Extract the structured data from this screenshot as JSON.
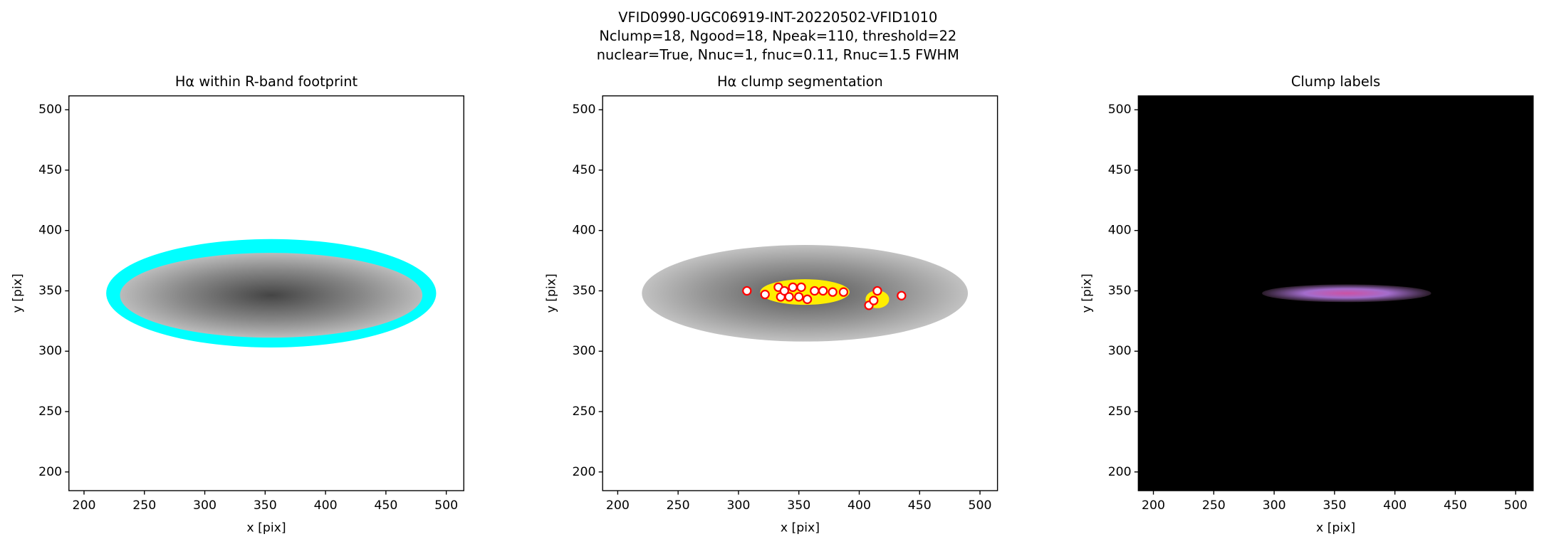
{
  "figure": {
    "title_lines": [
      "VFID0990-UGC06919-INT-20220502-VFID1010",
      "Nclump=18, Ngood=18, Npeak=110, threshold=22",
      "nuclear=True, Nnuc=1, fnuc=0.11, Rnuc=1.5 FWHM"
    ]
  },
  "chart_data": [
    {
      "type": "image",
      "title": "Hα within R-band footprint",
      "x_label": "x [pix]",
      "y_label": "y [pix]",
      "xlim": [
        187.5,
        514.5
      ],
      "ylim": [
        184.5,
        511.5
      ],
      "xticks": [
        200,
        250,
        300,
        350,
        400,
        450,
        500
      ],
      "yticks": [
        200,
        250,
        300,
        350,
        400,
        450,
        500
      ],
      "background": "#ffffff",
      "footprint_color": "#00ffff"
    },
    {
      "type": "scatter",
      "title": "Hα clump segmentation",
      "x_label": "x [pix]",
      "y_label": "y [pix]",
      "xlim": [
        187.5,
        514.5
      ],
      "ylim": [
        184.5,
        511.5
      ],
      "xticks": [
        200,
        250,
        300,
        350,
        400,
        450,
        500
      ],
      "yticks": [
        200,
        250,
        300,
        350,
        400,
        450,
        500
      ],
      "background": "#ffffff",
      "color": "#ff0000",
      "x": [
        307,
        322,
        333,
        335,
        338,
        342,
        345,
        350,
        352,
        357,
        363,
        370,
        378,
        387,
        408,
        412,
        415,
        435
      ],
      "y": [
        350,
        347,
        353,
        345,
        350,
        345,
        353,
        345,
        353,
        343,
        350,
        350,
        349,
        349,
        338,
        342,
        350,
        346
      ]
    },
    {
      "type": "image",
      "title": "Clump labels",
      "x_label": "x [pix]",
      "y_label": "y [pix]",
      "xlim": [
        187.5,
        514.5
      ],
      "ylim": [
        184.5,
        511.5
      ],
      "xticks": [
        200,
        250,
        300,
        350,
        400,
        450,
        500
      ],
      "yticks": [
        200,
        250,
        300,
        350,
        400,
        450,
        500
      ],
      "background": "#000000"
    }
  ]
}
